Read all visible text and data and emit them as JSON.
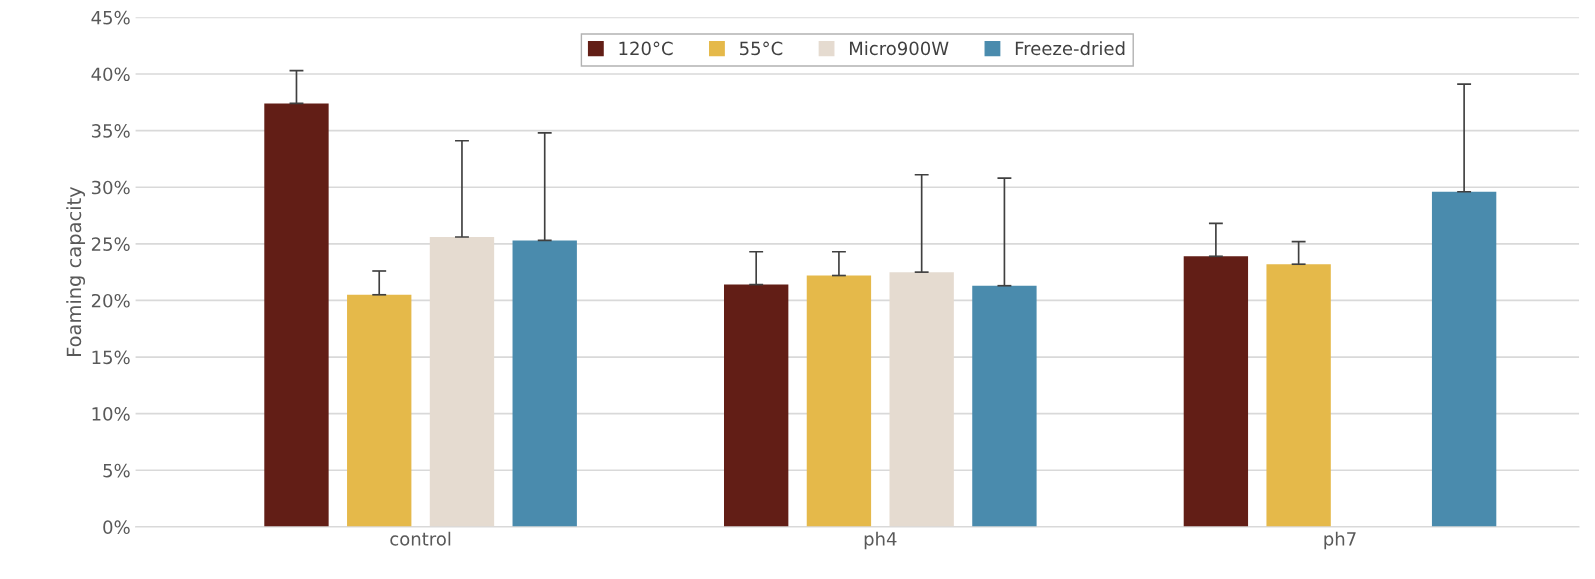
{
  "chart_data": {
    "type": "bar",
    "ylabel": "Foaming capacity",
    "categories": [
      "control",
      "ph4",
      "ph7"
    ],
    "series": [
      {
        "name": "120°C",
        "color": "#621e16",
        "values": [
          37.4,
          21.4,
          23.9
        ],
        "errors": [
          2.9,
          2.9,
          2.9
        ]
      },
      {
        "name": "55°C",
        "color": "#e5b94a",
        "values": [
          20.5,
          22.2,
          23.2
        ],
        "errors": [
          2.1,
          2.1,
          2.0
        ]
      },
      {
        "name": "Micro900W",
        "color": "#e5dbd0",
        "values": [
          25.6,
          22.5,
          null
        ],
        "errors": [
          8.5,
          8.6,
          null
        ]
      },
      {
        "name": "Freeze-dried",
        "color": "#4a8bad",
        "values": [
          25.3,
          21.3,
          29.6
        ],
        "errors": [
          9.5,
          9.5,
          9.5
        ]
      }
    ],
    "ylim": [
      0,
      45
    ],
    "yticks": [
      {
        "value": 0,
        "label": "0%"
      },
      {
        "value": 5,
        "label": "5%"
      },
      {
        "value": 10,
        "label": "10%"
      },
      {
        "value": 15,
        "label": "15%"
      },
      {
        "value": 20,
        "label": "20%"
      },
      {
        "value": 25,
        "label": "25%"
      },
      {
        "value": 30,
        "label": "30%"
      },
      {
        "value": 35,
        "label": "35%"
      },
      {
        "value": 40,
        "label": "40%"
      },
      {
        "value": 45,
        "label": "45%"
      }
    ],
    "grid": "y",
    "legend": "top"
  }
}
